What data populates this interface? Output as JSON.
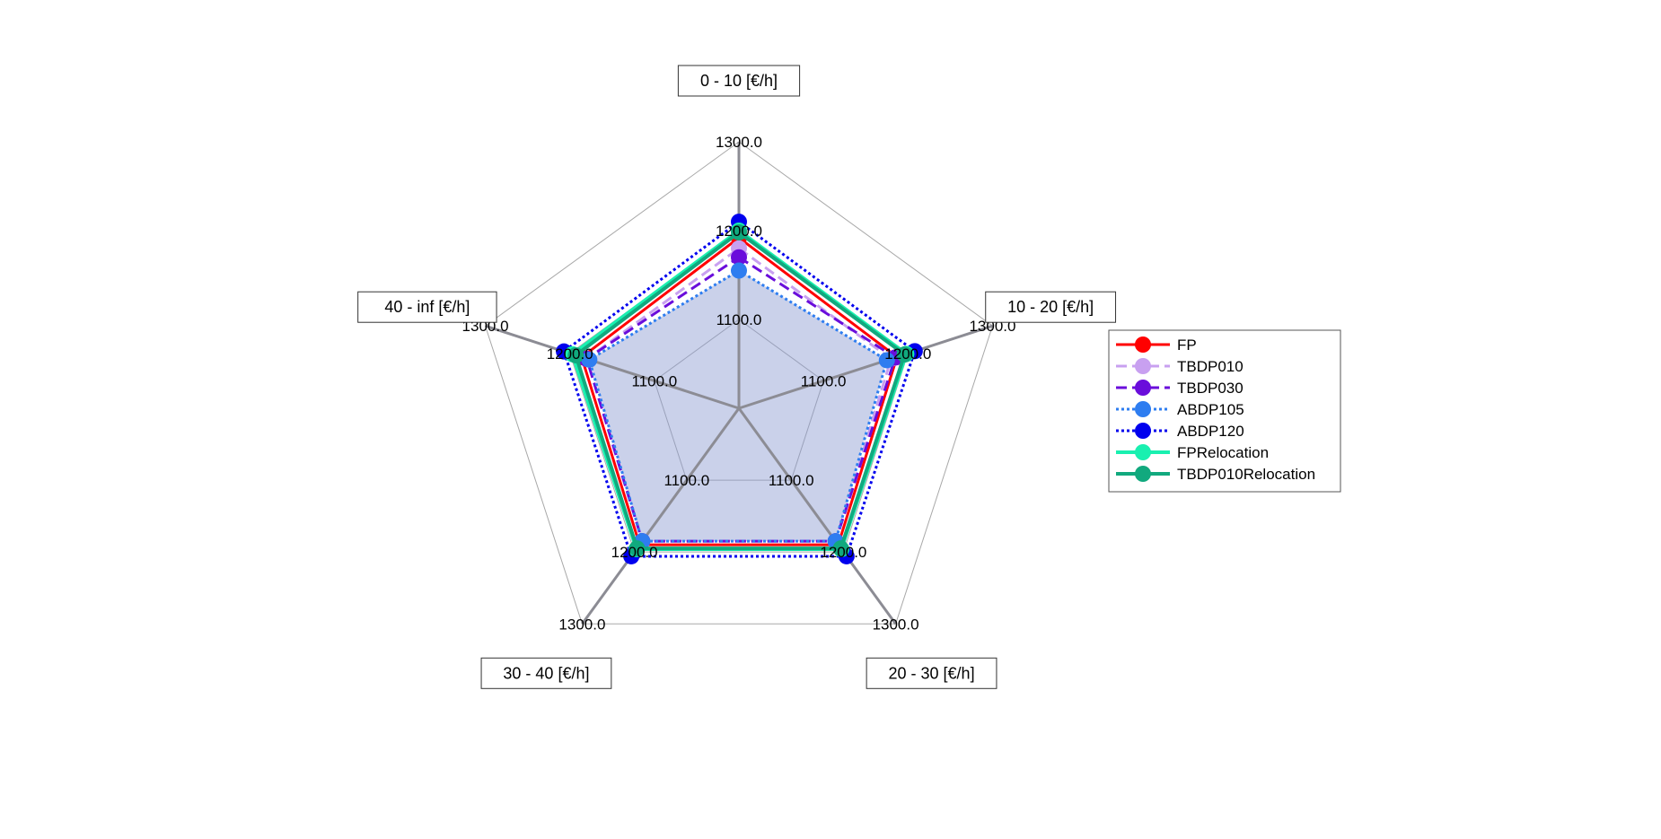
{
  "chart_data": {
    "type": "radar",
    "title": "",
    "axes": [
      "0 - 10 [€/h]",
      "10 - 20 [€/h]",
      "20 - 30 [€/h]",
      "30 - 40 [€/h]",
      "40 - inf [€/h]"
    ],
    "rings": [
      1000,
      1100,
      1200,
      1300
    ],
    "ring_labels": [
      "1100.0",
      "1200.0",
      "1300.0"
    ],
    "range": [
      1000,
      1300
    ],
    "legend_position": "right",
    "grid": true,
    "series": [
      {
        "name": "FP",
        "color": "#ff0000",
        "dash": "solid",
        "width": 3,
        "values": [
          1192,
          1187,
          1190,
          1190,
          1186
        ]
      },
      {
        "name": "TBDP010",
        "color": "#c8a0f0",
        "dash": "dash",
        "width": 3,
        "values": [
          1180,
          1180,
          1185,
          1185,
          1180
        ]
      },
      {
        "name": "TBDP030",
        "color": "#6a0ddb",
        "dash": "dash",
        "width": 3,
        "values": [
          1170,
          1185,
          1185,
          1185,
          1180
        ]
      },
      {
        "name": "ABDP105",
        "color": "#2e7df0",
        "dash": "dot",
        "width": 3,
        "values": [
          1155,
          1175,
          1185,
          1185,
          1177
        ]
      },
      {
        "name": "ABDP120",
        "color": "#0000ee",
        "dash": "dot",
        "width": 3,
        "values": [
          1210,
          1208,
          1206,
          1206,
          1207
        ]
      },
      {
        "name": "FPRelocation",
        "color": "#19f0b0",
        "dash": "solid",
        "width": 4,
        "values": [
          1200,
          1198,
          1196,
          1196,
          1197
        ]
      },
      {
        "name": "TBDP010Relocation",
        "color": "#11a97e",
        "dash": "solid",
        "width": 4,
        "values": [
          1198,
          1196,
          1195,
          1195,
          1193
        ]
      }
    ],
    "fill_color": "#8a9ad0"
  }
}
